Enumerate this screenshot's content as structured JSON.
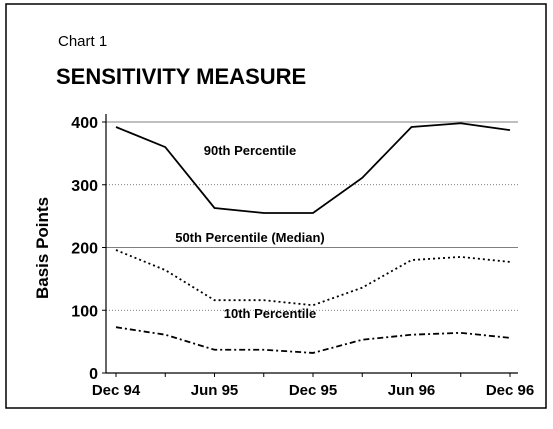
{
  "chart_data": {
    "type": "line",
    "label": "Chart 1",
    "title": "SENSITIVITY MEASURE",
    "y_label": "Basis Points",
    "categories": [
      "Dec 94",
      null,
      "Jun 95",
      null,
      "Dec 95",
      null,
      "Jun 96",
      null,
      "Dec 96"
    ],
    "series": [
      {
        "name": "90th Percentile",
        "color": "#000000",
        "style": "solid",
        "values": [
          392,
          360,
          263,
          255,
          255,
          311,
          392,
          398,
          387
        ]
      },
      {
        "name": "50th Percentile (Median)",
        "color": "#000000",
        "style": "dotted",
        "values": [
          196,
          164,
          116,
          116,
          108,
          136,
          180,
          185,
          177
        ]
      },
      {
        "name": "10th Percentile",
        "color": "#000000",
        "style": "dashdot",
        "values": [
          73,
          61,
          37,
          37,
          32,
          53,
          61,
          64,
          56
        ]
      }
    ],
    "ylim": [
      0,
      400
    ],
    "yticks": [
      0,
      100,
      200,
      300,
      400
    ],
    "grid": true
  }
}
